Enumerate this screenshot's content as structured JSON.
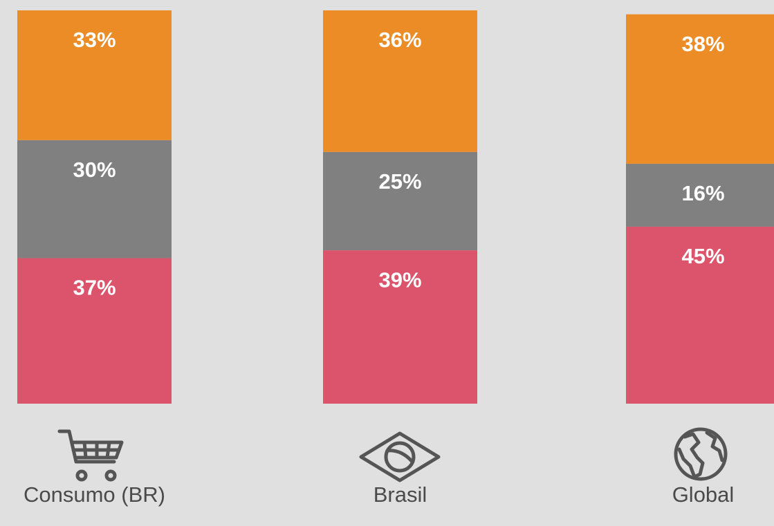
{
  "chart_data": {
    "type": "stacked_bar",
    "categories": [
      "Consumo (BR)",
      "Brasil",
      "Global"
    ],
    "series": [
      {
        "color": "#dc546b",
        "values": [
          37,
          39,
          45
        ],
        "value_labels": [
          "37%",
          "39%",
          "45%"
        ]
      },
      {
        "color": "#808080",
        "values": [
          30,
          25,
          16
        ],
        "value_labels": [
          "30%",
          "25%",
          "16%"
        ]
      },
      {
        "color": "#eb8c26",
        "values": [
          33,
          36,
          38
        ],
        "value_labels": [
          "33%",
          "36%",
          "38%"
        ]
      }
    ],
    "ylim": [
      0,
      100
    ]
  }
}
